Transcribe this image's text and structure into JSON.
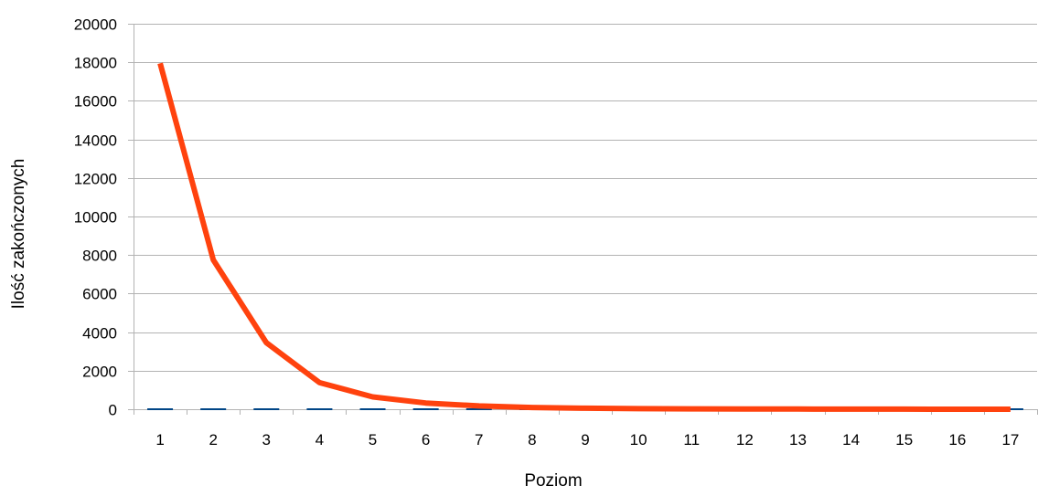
{
  "chart_data": {
    "type": "line",
    "title": "",
    "xlabel": "Poziom",
    "ylabel": "Ilość zakończonych",
    "categories": [
      "1",
      "2",
      "3",
      "4",
      "5",
      "6",
      "7",
      "8",
      "9",
      "10",
      "11",
      "12",
      "13",
      "14",
      "15",
      "16",
      "17"
    ],
    "ylim": [
      0,
      20000
    ],
    "yticks": [
      "0",
      "2000",
      "4000",
      "6000",
      "8000",
      "10000",
      "12000",
      "14000",
      "16000",
      "18000",
      "20000"
    ],
    "grid": true,
    "legend": "none",
    "series": [
      {
        "color": "#ff420e",
        "values": [
          17950,
          7750,
          3450,
          1380,
          640,
          320,
          170,
          90,
          50,
          30,
          20,
          12,
          8,
          5,
          3,
          2,
          1
        ]
      },
      {
        "color": "#004586",
        "values": [
          0,
          0,
          0,
          0,
          0,
          0,
          0,
          0,
          0,
          0,
          0,
          0,
          0,
          0,
          0,
          0,
          0
        ]
      }
    ]
  }
}
